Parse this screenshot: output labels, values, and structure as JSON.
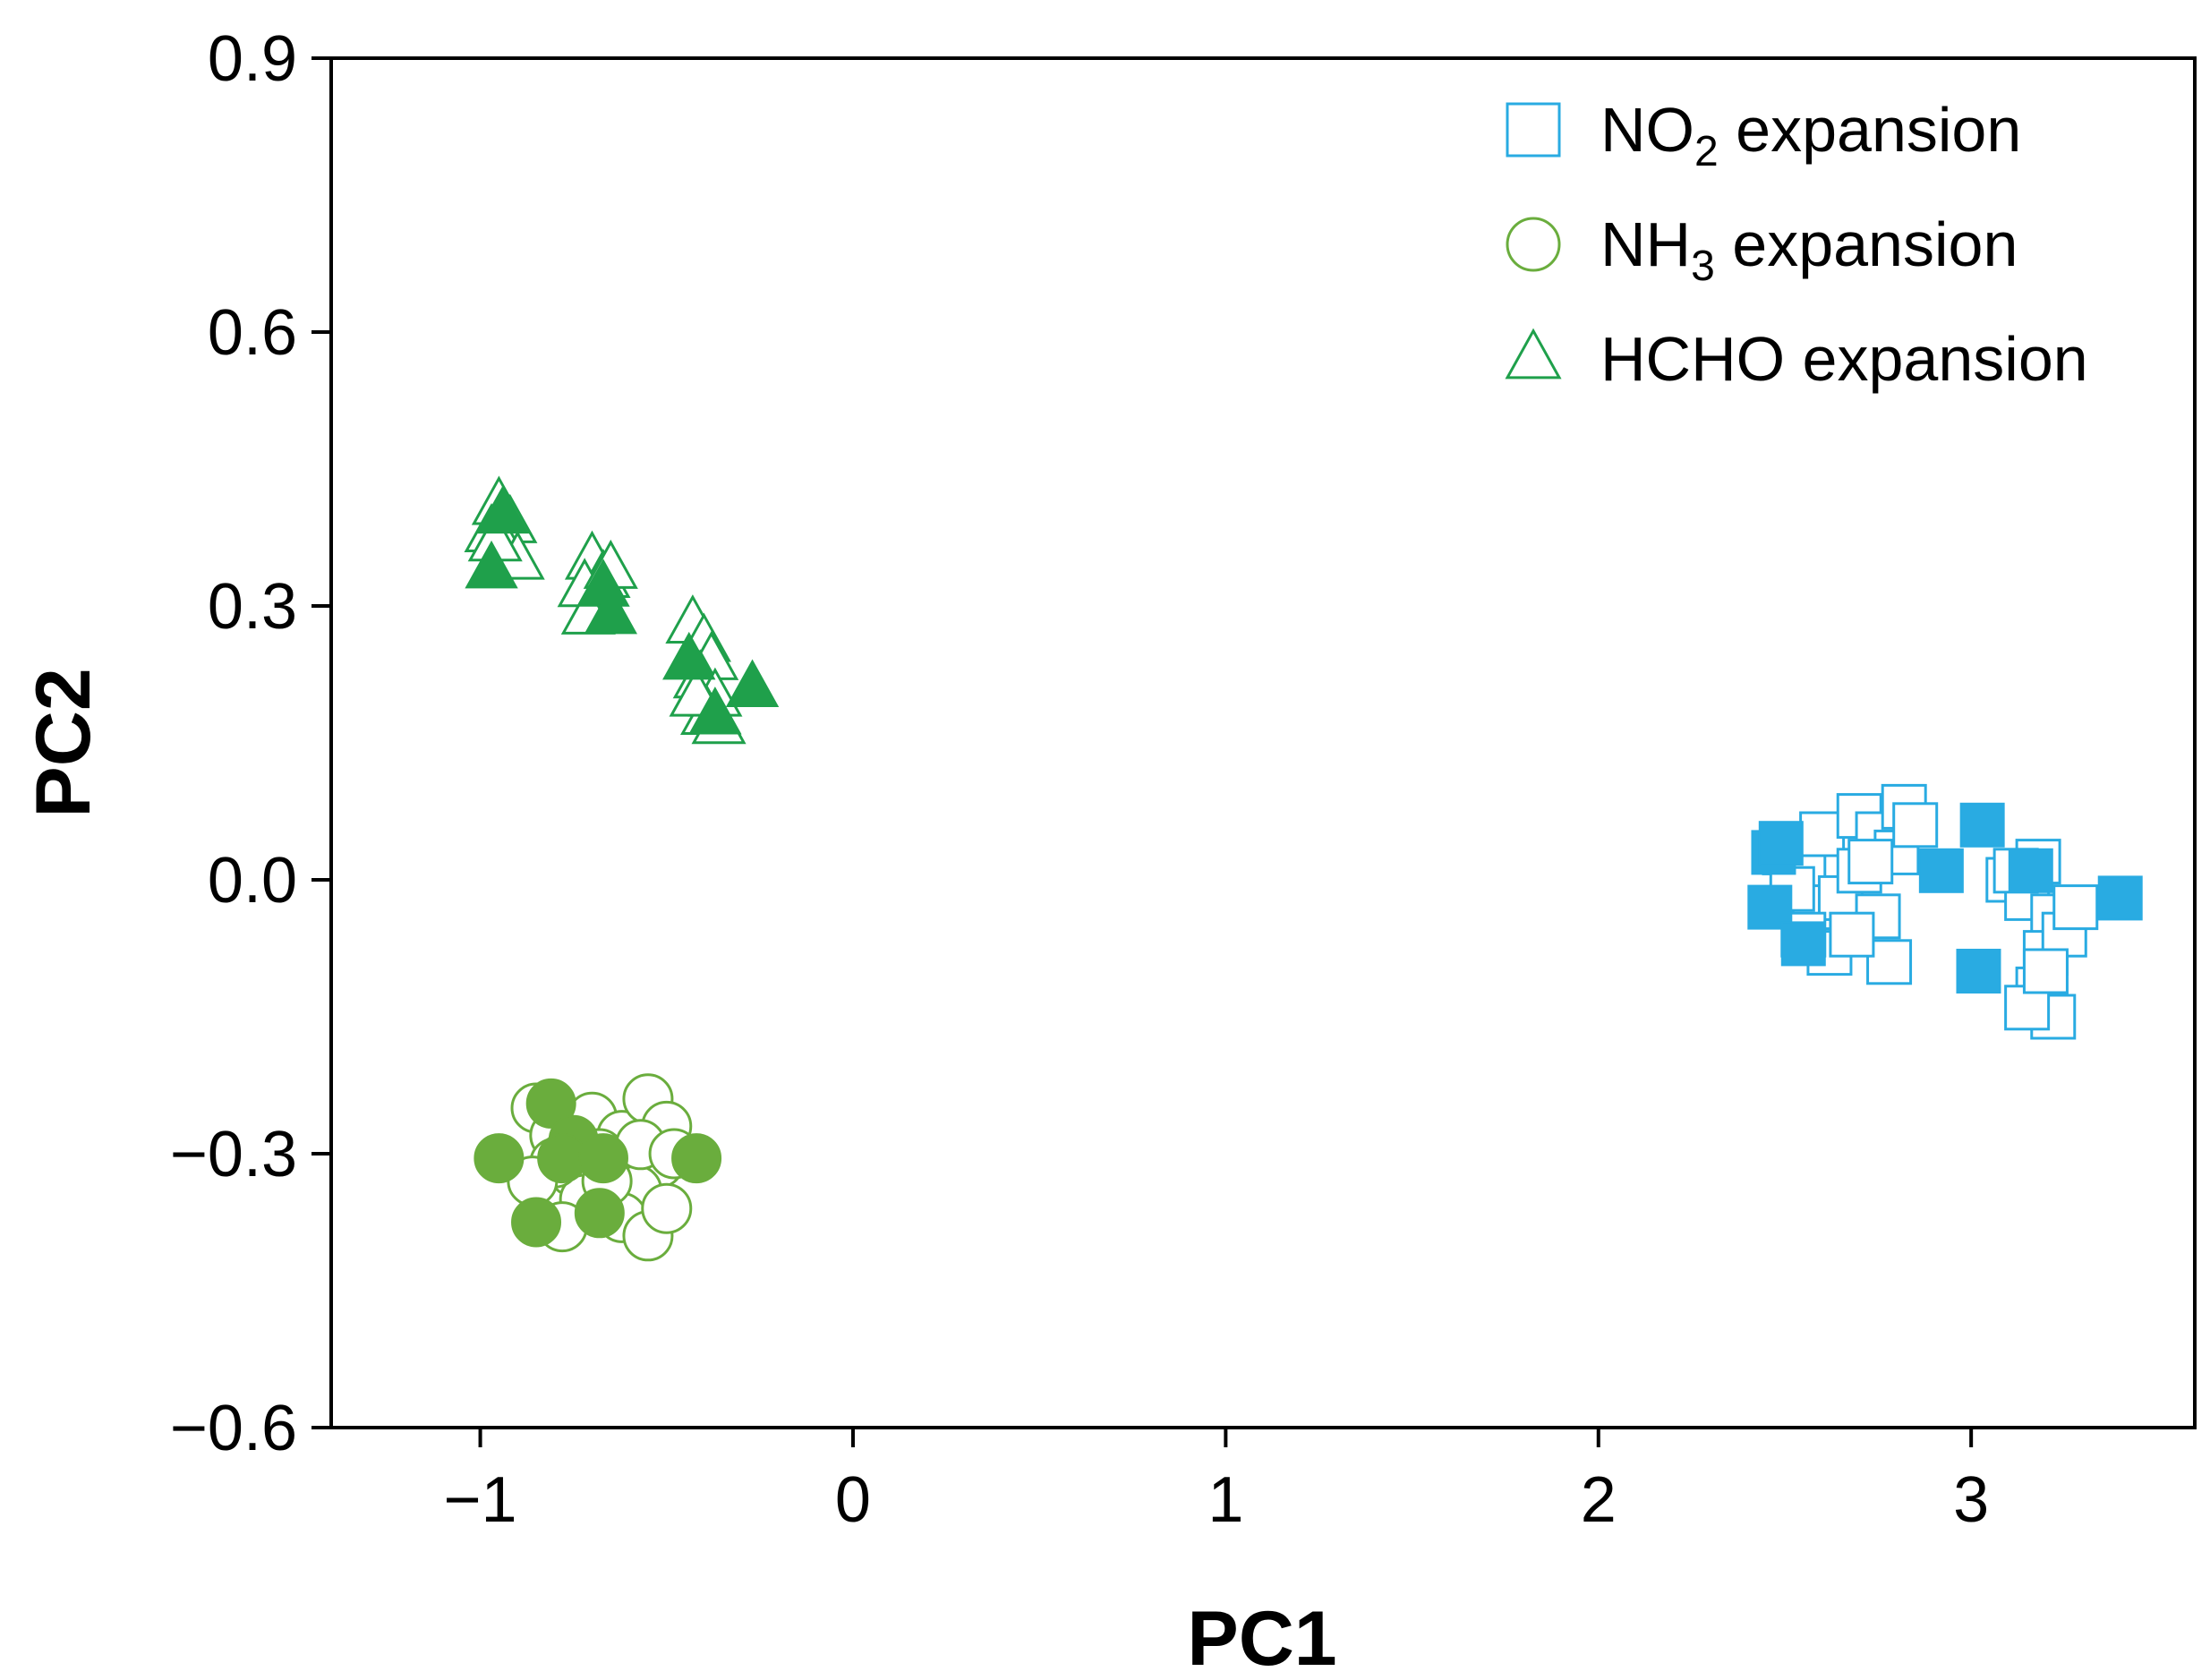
{
  "chart_data": {
    "type": "scatter",
    "title": "",
    "xlabel": "PC1",
    "ylabel": "PC2",
    "xlim": [
      -1.4,
      3.6
    ],
    "ylim": [
      -0.6,
      0.9
    ],
    "xticks": [
      -1,
      0,
      1,
      2,
      3
    ],
    "yticks": [
      -0.6,
      -0.3,
      0.0,
      0.3,
      0.6,
      0.9
    ],
    "xtick_labels": [
      "−1",
      "0",
      "1",
      "2",
      "3"
    ],
    "ytick_labels": [
      "−0.6",
      "−0.3",
      "0.0",
      "0.3",
      "0.6",
      "0.9"
    ],
    "legend_position": "top-right",
    "series": [
      {
        "name": "NO2 expansion",
        "legend": {
          "main": "NO",
          "sub": "2",
          "rest": " expansion"
        },
        "marker": "square",
        "color": "#29abe2",
        "points_open": [
          [
            2.5,
            0.03
          ],
          [
            2.55,
            0.01
          ],
          [
            2.6,
            0.05
          ],
          [
            2.7,
            0.07
          ],
          [
            2.75,
            0.05
          ],
          [
            2.82,
            0.08
          ],
          [
            2.58,
            -0.03
          ],
          [
            2.65,
            -0.02
          ],
          [
            2.7,
            0.01
          ],
          [
            2.75,
            -0.04
          ],
          [
            2.62,
            -0.08
          ],
          [
            2.78,
            -0.09
          ],
          [
            2.55,
            -0.06
          ],
          [
            2.8,
            0.03
          ],
          [
            2.68,
            -0.06
          ],
          [
            2.73,
            0.02
          ],
          [
            2.52,
            -0.01
          ],
          [
            2.85,
            0.06
          ],
          [
            3.1,
            0.0
          ],
          [
            3.15,
            -0.02
          ],
          [
            3.18,
            0.02
          ],
          [
            3.22,
            -0.04
          ],
          [
            3.2,
            -0.08
          ],
          [
            3.25,
            -0.06
          ],
          [
            3.18,
            -0.12
          ],
          [
            3.22,
            -0.15
          ],
          [
            3.15,
            -0.14
          ],
          [
            3.28,
            -0.03
          ],
          [
            3.12,
            0.01
          ],
          [
            3.2,
            -0.1
          ]
        ],
        "points_filled": [
          [
            2.47,
            0.03
          ],
          [
            2.49,
            0.04
          ],
          [
            2.46,
            -0.03
          ],
          [
            2.55,
            -0.07
          ],
          [
            2.92,
            0.01
          ],
          [
            3.03,
            0.06
          ],
          [
            3.16,
            0.01
          ],
          [
            3.4,
            -0.02
          ],
          [
            3.02,
            -0.1
          ]
        ]
      },
      {
        "name": "NH3 expansion",
        "legend": {
          "main": "NH",
          "sub": "3",
          "rest": " expansion"
        },
        "marker": "circle",
        "color": "#6aad3d",
        "points_open": [
          [
            -0.85,
            -0.25
          ],
          [
            -0.8,
            -0.28
          ],
          [
            -0.75,
            -0.32
          ],
          [
            -0.7,
            -0.26
          ],
          [
            -0.62,
            -0.28
          ],
          [
            -0.55,
            -0.24
          ],
          [
            -0.5,
            -0.27
          ],
          [
            -0.52,
            -0.31
          ],
          [
            -0.58,
            -0.34
          ],
          [
            -0.62,
            -0.37
          ],
          [
            -0.55,
            -0.39
          ],
          [
            -0.5,
            -0.36
          ],
          [
            -0.68,
            -0.3
          ],
          [
            -0.72,
            -0.35
          ],
          [
            -0.8,
            -0.31
          ],
          [
            -0.86,
            -0.33
          ],
          [
            -0.78,
            -0.38
          ],
          [
            -0.57,
            -0.29
          ],
          [
            -0.48,
            -0.3
          ],
          [
            -0.66,
            -0.33
          ]
        ],
        "points_filled": [
          [
            -0.95,
            -0.305
          ],
          [
            -0.81,
            -0.245
          ],
          [
            -0.75,
            -0.285
          ],
          [
            -0.78,
            -0.305
          ],
          [
            -0.67,
            -0.305
          ],
          [
            -0.42,
            -0.305
          ],
          [
            -0.85,
            -0.375
          ],
          [
            -0.68,
            -0.365
          ]
        ]
      },
      {
        "name": "HCHO expansion",
        "legend": {
          "main": "HCHO",
          "sub": "",
          "rest": " expansion"
        },
        "marker": "triangle",
        "color": "#1fa04b",
        "points_open": [
          [
            -0.95,
            0.41
          ],
          [
            -0.92,
            0.39
          ],
          [
            -0.97,
            0.38
          ],
          [
            -0.93,
            0.36
          ],
          [
            -0.9,
            0.35
          ],
          [
            -0.96,
            0.37
          ],
          [
            -0.7,
            0.35
          ],
          [
            -0.67,
            0.33
          ],
          [
            -0.72,
            0.32
          ],
          [
            -0.68,
            0.3
          ],
          [
            -0.65,
            0.34
          ],
          [
            -0.71,
            0.29
          ],
          [
            -0.43,
            0.28
          ],
          [
            -0.4,
            0.26
          ],
          [
            -0.38,
            0.24
          ],
          [
            -0.41,
            0.22
          ],
          [
            -0.37,
            0.2
          ],
          [
            -0.39,
            0.18
          ],
          [
            -0.36,
            0.17
          ],
          [
            -0.42,
            0.2
          ]
        ],
        "points_filled": [
          [
            -0.94,
            0.4
          ],
          [
            -0.97,
            0.34
          ],
          [
            -0.67,
            0.32
          ],
          [
            -0.65,
            0.29
          ],
          [
            -0.44,
            0.24
          ],
          [
            -0.37,
            0.18
          ],
          [
            -0.27,
            0.21
          ]
        ]
      }
    ]
  }
}
